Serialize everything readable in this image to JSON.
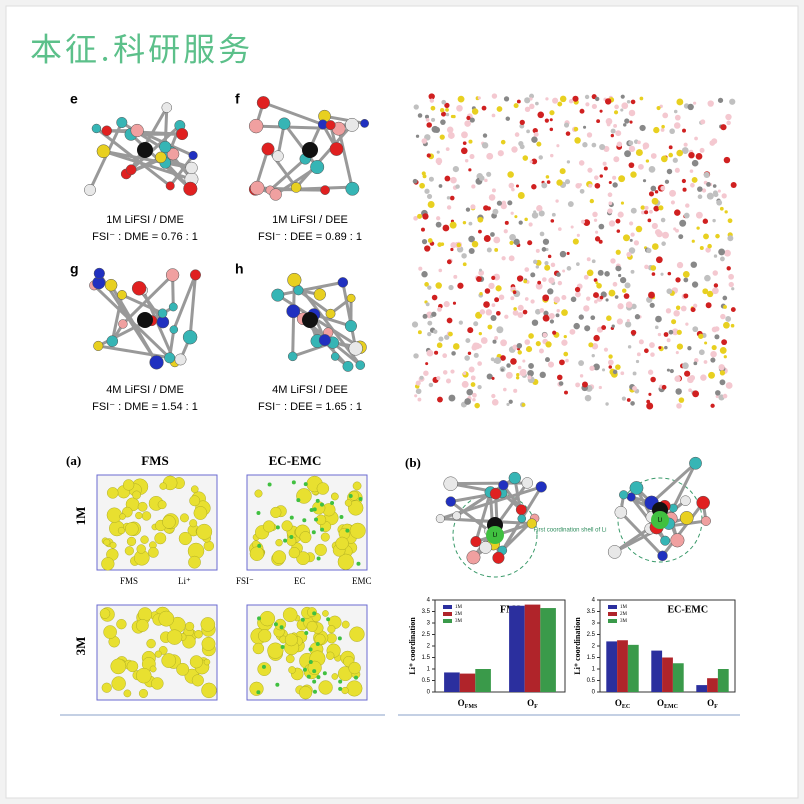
{
  "watermark": "本征.科研服务",
  "solvation": [
    {
      "label": "e",
      "line1": "1M LiFSI / DME",
      "line2": "FSI⁻ : DME = 0.76 : 1"
    },
    {
      "label": "f",
      "line1": "1M LiFSI / DEE",
      "line2": "FSI⁻ : DEE = 0.89 : 1"
    },
    {
      "label": "g",
      "line1": "4M LiFSI / DME",
      "line2": "FSI⁻ : DME = 1.54 : 1"
    },
    {
      "label": "h",
      "line1": "4M LiFSI / DEE",
      "line2": "FSI⁻ : DEE = 1.65 : 1"
    }
  ],
  "panel_a": {
    "label": "(a)",
    "columns": [
      "FMS",
      "EC-EMC"
    ],
    "rows": [
      "1M",
      "3M"
    ],
    "legend": [
      "FMS",
      "Li⁺",
      "FSI⁻",
      "EC",
      "EMC"
    ]
  },
  "panel_b": {
    "label": "(b)",
    "shell_label": "First coordination shell of Li",
    "atom_label": "Li"
  },
  "chart_data": [
    {
      "type": "bar",
      "title": "FMS",
      "y_label": "Li⁺ coordination",
      "categories": [
        {
          "base": "O",
          "sub": "FMS"
        },
        {
          "base": "O",
          "sub": "F"
        }
      ],
      "series": [
        {
          "name": "1M",
          "color": "#2b2f9e",
          "values": [
            0.85,
            3.75
          ]
        },
        {
          "name": "2M",
          "color": "#b0242a",
          "values": [
            0.8,
            3.8
          ]
        },
        {
          "name": "3M",
          "color": "#3a9a4a",
          "values": [
            1.0,
            3.65
          ]
        }
      ],
      "ylim": [
        0,
        4
      ],
      "yticks": [
        0,
        0.5,
        1,
        1.5,
        2,
        2.5,
        3,
        3.5,
        4
      ]
    },
    {
      "type": "bar",
      "title": "EC-EMC",
      "y_label": "Li⁺ coordination",
      "categories": [
        {
          "base": "O",
          "sub": "EC"
        },
        {
          "base": "O",
          "sub": "EMC"
        },
        {
          "base": "O",
          "sub": "F"
        }
      ],
      "series": [
        {
          "name": "1M",
          "color": "#2b2f9e",
          "values": [
            2.2,
            1.8,
            0.3
          ]
        },
        {
          "name": "2M",
          "color": "#b0242a",
          "values": [
            2.25,
            1.5,
            0.6
          ]
        },
        {
          "name": "3M",
          "color": "#3a9a4a",
          "values": [
            2.05,
            1.25,
            1.0
          ]
        }
      ],
      "ylim": [
        0,
        4
      ],
      "yticks": [
        0,
        0.5,
        1,
        1.5,
        2,
        2.5,
        3,
        3.5,
        4
      ]
    }
  ]
}
